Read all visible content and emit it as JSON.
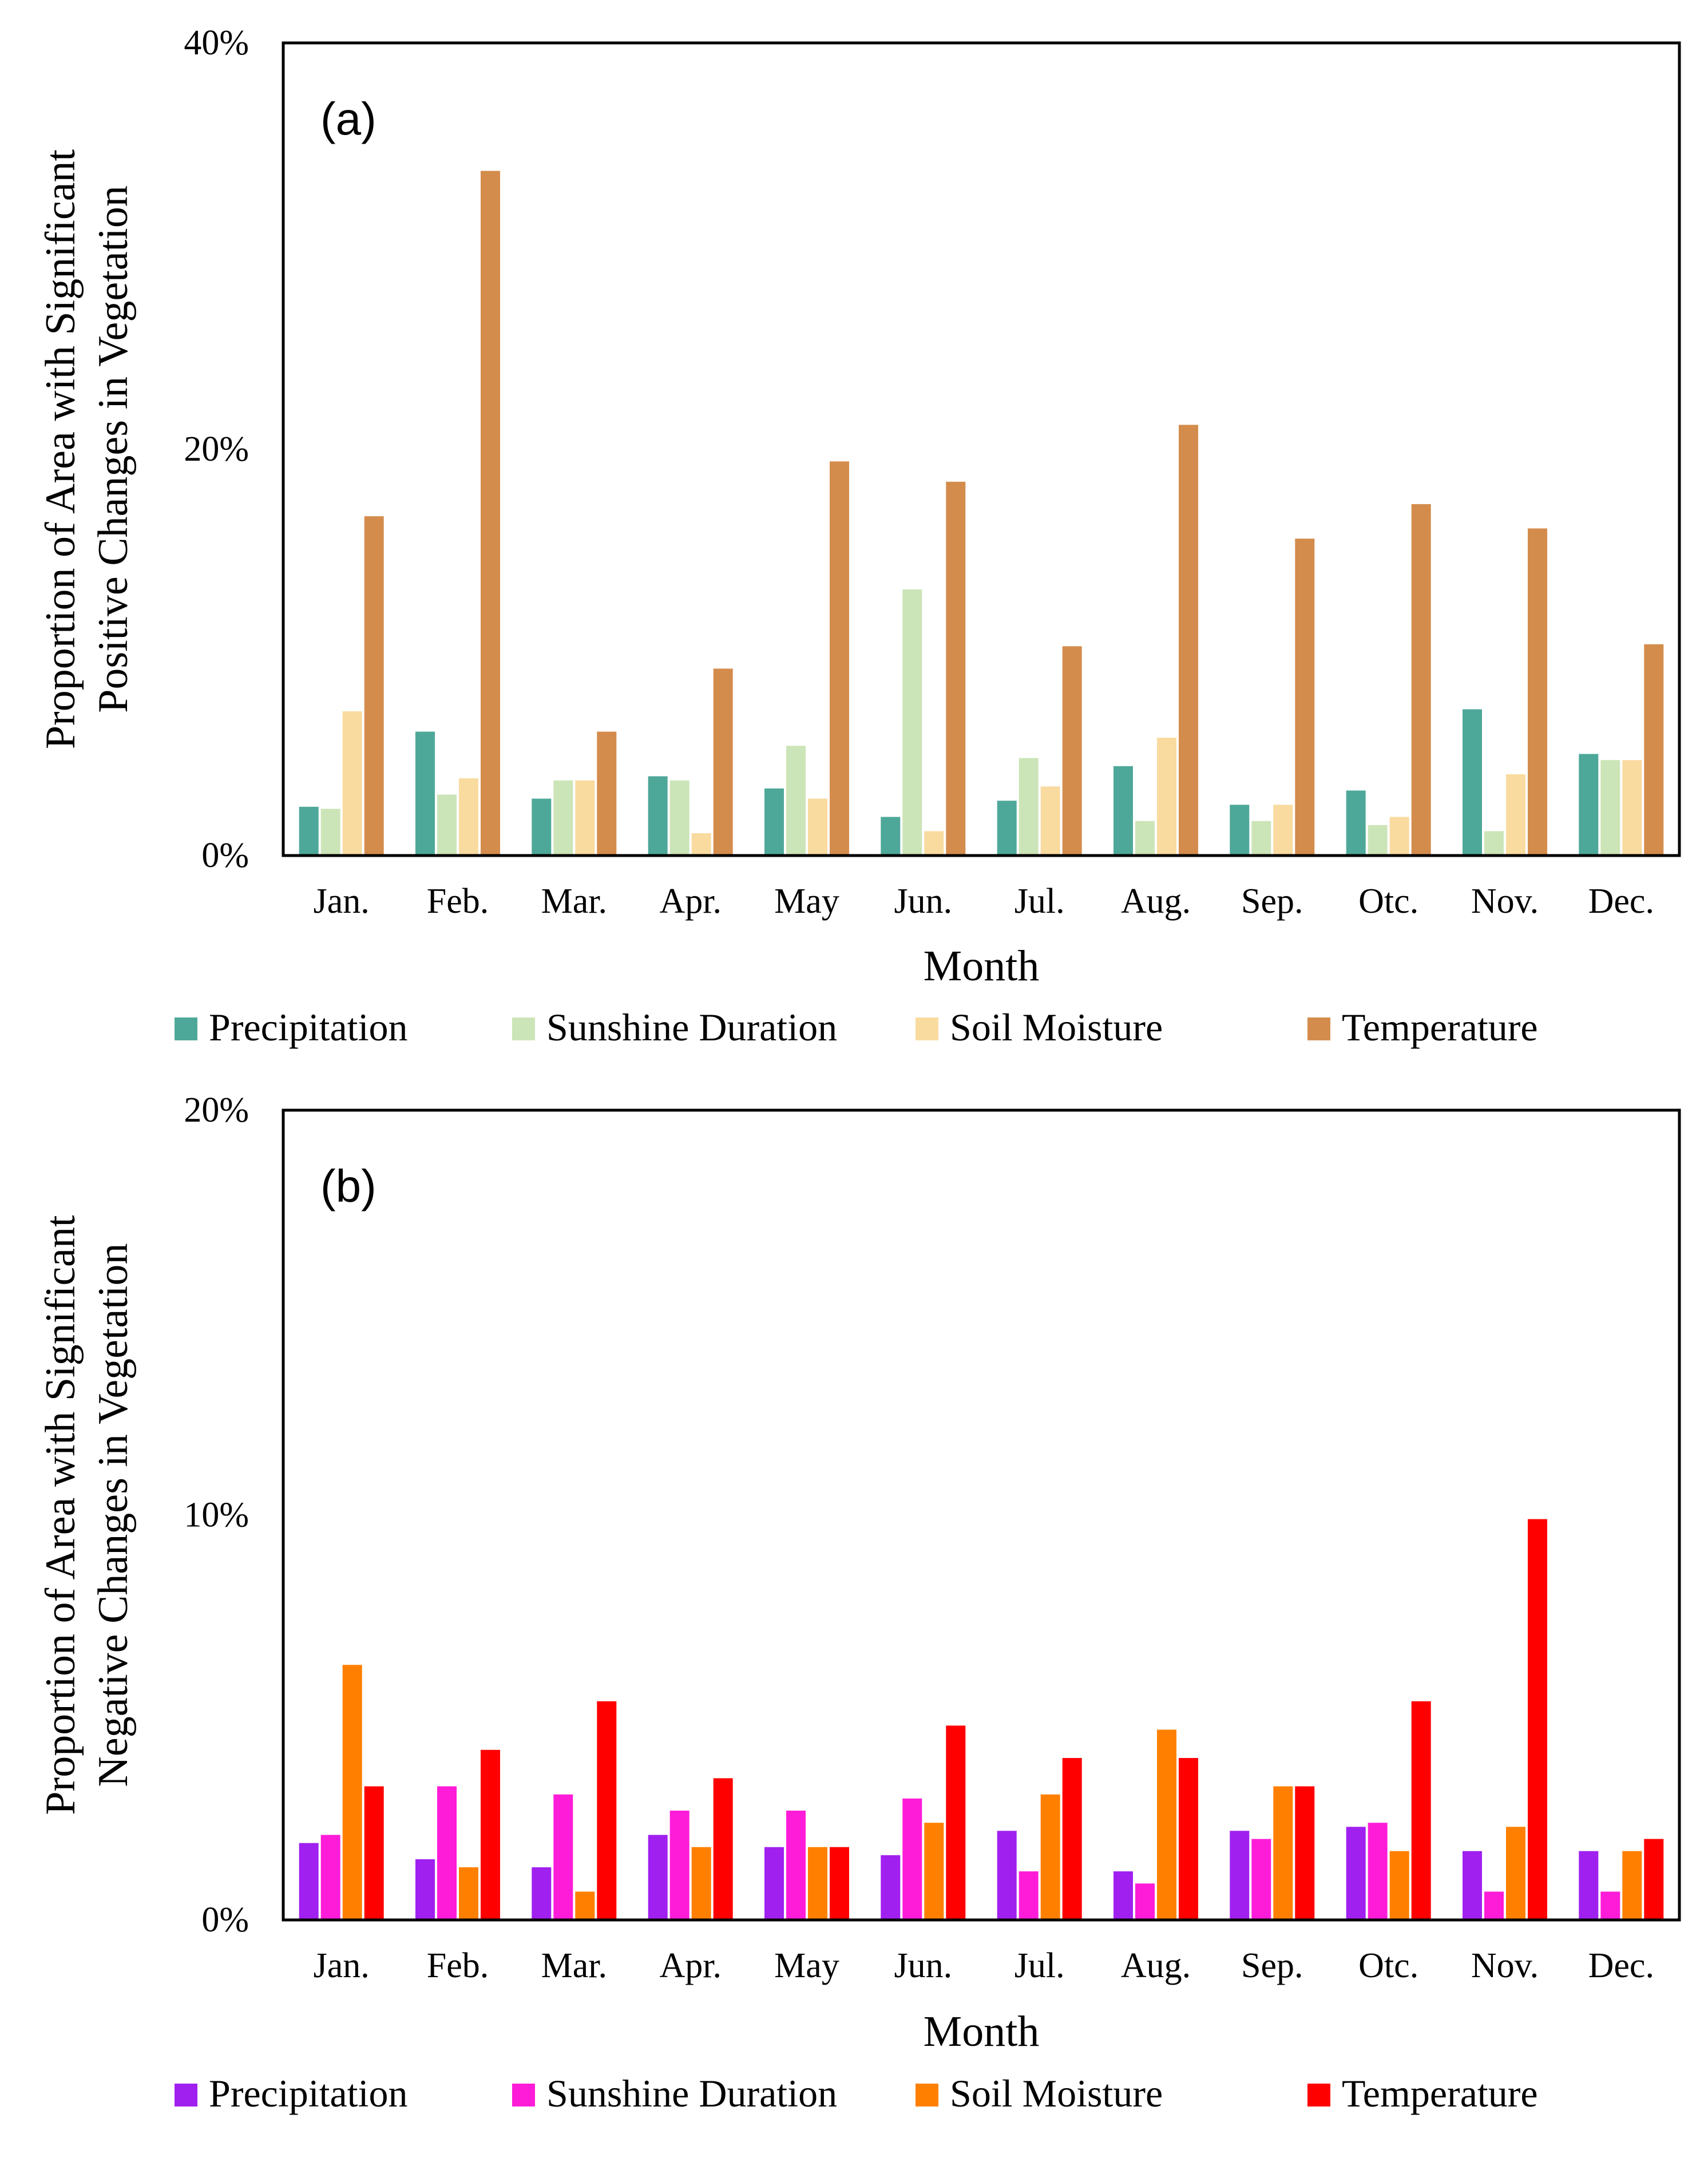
{
  "chart_data": [
    {
      "type": "bar",
      "panel_label": "(a)",
      "categories": [
        "Jan.",
        "Feb.",
        "Mar.",
        "Apr.",
        "May",
        "Jun.",
        "Jul.",
        "Aug.",
        "Sep.",
        "Otc.",
        "Nov.",
        "Dec."
      ],
      "xlabel": "Month",
      "ylabel_lines": [
        "Proportion of Area with Significant",
        "Positive Changes in Vegetation"
      ],
      "ylim": [
        0,
        40
      ],
      "yticks": [
        0,
        20,
        40
      ],
      "ytick_labels": [
        "0%",
        "20%",
        "40%"
      ],
      "grid": false,
      "legend_position": "bottom",
      "series": [
        {
          "name": "Precipitation",
          "color": "#4ea899",
          "values": [
            2.4,
            6.1,
            2.8,
            3.9,
            3.3,
            1.9,
            2.7,
            4.4,
            2.5,
            3.2,
            7.2,
            5.0
          ]
        },
        {
          "name": "Sunshine Duration",
          "color": "#cce5b8",
          "values": [
            2.3,
            3.0,
            3.7,
            3.7,
            5.4,
            13.1,
            4.8,
            1.7,
            1.7,
            1.5,
            1.2,
            4.7
          ]
        },
        {
          "name": "Soil Moisture",
          "color": "#f9dba0",
          "values": [
            7.1,
            3.8,
            3.7,
            1.1,
            2.8,
            1.2,
            3.4,
            5.8,
            2.5,
            1.9,
            4.0,
            4.7
          ]
        },
        {
          "name": "Temperature",
          "color": "#d48c4c",
          "values": [
            16.7,
            33.7,
            6.1,
            9.2,
            19.4,
            18.4,
            10.3,
            21.2,
            15.6,
            17.3,
            16.1,
            10.4
          ]
        }
      ]
    },
    {
      "type": "bar",
      "panel_label": "(b)",
      "categories": [
        "Jan.",
        "Feb.",
        "Mar.",
        "Apr.",
        "May",
        "Jun.",
        "Jul.",
        "Aug.",
        "Sep.",
        "Otc.",
        "Nov.",
        "Dec."
      ],
      "xlabel": "Month",
      "ylabel_lines": [
        "Proportion of Area with Significant",
        "Negative Changes in Vegetation"
      ],
      "ylim": [
        0,
        20
      ],
      "yticks": [
        0,
        10,
        20
      ],
      "ytick_labels": [
        "0%",
        "10%",
        "20%"
      ],
      "grid": false,
      "legend_position": "bottom",
      "series": [
        {
          "name": "Precipitation",
          "color": "#a020f0",
          "values": [
            1.9,
            1.5,
            1.3,
            2.1,
            1.8,
            1.6,
            2.2,
            1.2,
            2.2,
            2.3,
            1.7,
            1.7
          ]
        },
        {
          "name": "Sunshine Duration",
          "color": "#ff1cd8",
          "values": [
            2.1,
            3.3,
            3.1,
            2.7,
            2.7,
            3.0,
            1.2,
            0.9,
            2.0,
            2.4,
            0.7,
            0.7
          ]
        },
        {
          "name": "Soil Moisture",
          "color": "#ff8000",
          "values": [
            6.3,
            1.3,
            0.7,
            1.8,
            1.8,
            2.4,
            3.1,
            4.7,
            3.3,
            1.7,
            2.3,
            1.7
          ]
        },
        {
          "name": "Temperature",
          "color": "#ff0000",
          "values": [
            3.3,
            4.2,
            5.4,
            3.5,
            1.8,
            4.8,
            4.0,
            4.0,
            3.3,
            5.4,
            9.9,
            2.0
          ]
        }
      ]
    }
  ]
}
